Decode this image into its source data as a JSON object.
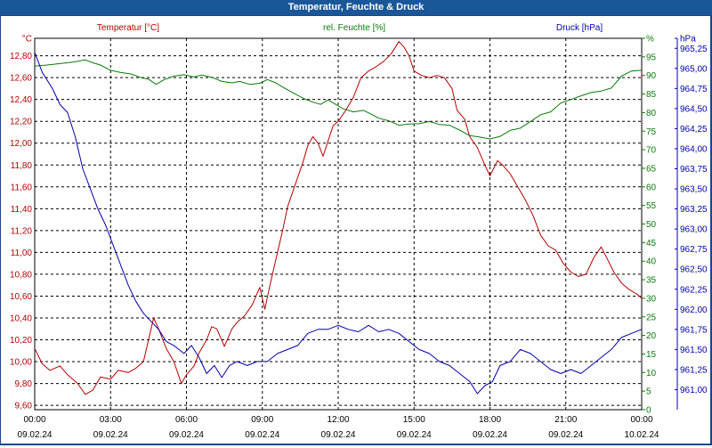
{
  "window": {
    "title": "Temperatur, Feuchte & Druck"
  },
  "colors": {
    "temperature": "#b40000",
    "humidity": "#0a7a0a",
    "pressure": "#0000aa",
    "frame": "#19478a",
    "grid": "#000000"
  },
  "chart_data": {
    "type": "line",
    "title": "Temperatur, Feuchte & Druck",
    "x_ticks": [
      {
        "time": "00:00",
        "date": "09.02.24"
      },
      {
        "time": "03:00",
        "date": "09.02.24"
      },
      {
        "time": "06:00",
        "date": "09.02.24"
      },
      {
        "time": "09:00",
        "date": "09.02.24"
      },
      {
        "time": "12:00",
        "date": "09.02.24"
      },
      {
        "time": "15:00",
        "date": "09.02.24"
      },
      {
        "time": "18:00",
        "date": "09.02.24"
      },
      {
        "time": "21:00",
        "date": "09.02.24"
      },
      {
        "time": "00:00",
        "date": "10.02.24"
      }
    ],
    "x_range_hours": [
      0,
      24
    ],
    "axes": {
      "temperature": {
        "unit": "°C",
        "range": [
          9.56,
          12.96
        ],
        "ticks": [
          "9,60",
          "9,80",
          "10,00",
          "10,20",
          "10,40",
          "10,60",
          "10,80",
          "11,00",
          "11,20",
          "11,40",
          "11,60",
          "11,80",
          "12,00",
          "12,20",
          "12,40",
          "12,60",
          "12,80"
        ],
        "tick_values": [
          9.6,
          9.8,
          10.0,
          10.2,
          10.4,
          10.6,
          10.8,
          11.0,
          11.2,
          11.4,
          11.6,
          11.8,
          12.0,
          12.2,
          12.4,
          12.6,
          12.8
        ]
      },
      "humidity": {
        "unit": "%",
        "range": [
          0,
          100
        ],
        "ticks": [
          "0",
          "5",
          "10",
          "15",
          "20",
          "25",
          "30",
          "35",
          "40",
          "45",
          "50",
          "55",
          "60",
          "65",
          "70",
          "75",
          "80",
          "85",
          "90",
          "95",
          "%"
        ],
        "tick_values": [
          0,
          5,
          10,
          15,
          20,
          25,
          30,
          35,
          40,
          45,
          50,
          55,
          60,
          65,
          70,
          75,
          80,
          85,
          90,
          95,
          100
        ]
      },
      "pressure": {
        "unit": "hPa",
        "range": [
          960.75,
          965.375
        ],
        "ticks": [
          "961,00",
          "961,25",
          "961,50",
          "961,75",
          "962,00",
          "962,25",
          "962,50",
          "962,75",
          "963,00",
          "963,25",
          "963,50",
          "963,75",
          "964,00",
          "964,25",
          "964,50",
          "964,75",
          "965,00",
          "965,25",
          "hPa"
        ],
        "tick_values": [
          961.0,
          961.25,
          961.5,
          961.75,
          962.0,
          962.25,
          962.5,
          962.75,
          963.0,
          963.25,
          963.5,
          963.75,
          964.0,
          964.25,
          964.5,
          964.75,
          965.0,
          965.25,
          965.375
        ]
      }
    },
    "series": [
      {
        "name": "Temperatur [°C]",
        "axis": "temperature",
        "color": "#b40000",
        "points": [
          [
            0,
            10.12
          ],
          [
            0.3,
            9.98
          ],
          [
            0.6,
            9.92
          ],
          [
            1.0,
            9.96
          ],
          [
            1.3,
            9.88
          ],
          [
            1.7,
            9.8
          ],
          [
            2.0,
            9.7
          ],
          [
            2.3,
            9.74
          ],
          [
            2.6,
            9.86
          ],
          [
            3.0,
            9.84
          ],
          [
            3.3,
            9.92
          ],
          [
            3.7,
            9.9
          ],
          [
            4.0,
            9.94
          ],
          [
            4.3,
            10.0
          ],
          [
            4.5,
            10.2
          ],
          [
            4.7,
            10.4
          ],
          [
            4.9,
            10.3
          ],
          [
            5.2,
            10.12
          ],
          [
            5.5,
            10.0
          ],
          [
            5.8,
            9.8
          ],
          [
            6.0,
            9.88
          ],
          [
            6.3,
            9.96
          ],
          [
            6.5,
            10.08
          ],
          [
            6.8,
            10.2
          ],
          [
            7.0,
            10.32
          ],
          [
            7.2,
            10.3
          ],
          [
            7.5,
            10.14
          ],
          [
            7.8,
            10.3
          ],
          [
            8.0,
            10.36
          ],
          [
            8.3,
            10.42
          ],
          [
            8.6,
            10.52
          ],
          [
            8.9,
            10.68
          ],
          [
            9.1,
            10.48
          ],
          [
            9.3,
            10.7
          ],
          [
            9.6,
            11.0
          ],
          [
            9.8,
            11.2
          ],
          [
            10.0,
            11.42
          ],
          [
            10.3,
            11.62
          ],
          [
            10.6,
            11.82
          ],
          [
            10.8,
            11.98
          ],
          [
            11.0,
            12.06
          ],
          [
            11.2,
            12.0
          ],
          [
            11.4,
            11.88
          ],
          [
            11.6,
            12.02
          ],
          [
            11.8,
            12.16
          ],
          [
            12.0,
            12.2
          ],
          [
            12.3,
            12.3
          ],
          [
            12.6,
            12.42
          ],
          [
            12.9,
            12.6
          ],
          [
            13.2,
            12.66
          ],
          [
            13.5,
            12.7
          ],
          [
            13.8,
            12.75
          ],
          [
            14.1,
            12.82
          ],
          [
            14.4,
            12.93
          ],
          [
            14.6,
            12.88
          ],
          [
            14.8,
            12.8
          ],
          [
            15.0,
            12.66
          ],
          [
            15.3,
            12.62
          ],
          [
            15.6,
            12.6
          ],
          [
            15.9,
            12.62
          ],
          [
            16.2,
            12.6
          ],
          [
            16.5,
            12.5
          ],
          [
            16.7,
            12.3
          ],
          [
            17.0,
            12.22
          ],
          [
            17.2,
            12.06
          ],
          [
            17.5,
            11.96
          ],
          [
            17.8,
            11.8
          ],
          [
            18.0,
            11.7
          ],
          [
            18.3,
            11.84
          ],
          [
            18.5,
            11.8
          ],
          [
            18.8,
            11.72
          ],
          [
            19.1,
            11.6
          ],
          [
            19.4,
            11.48
          ],
          [
            19.7,
            11.34
          ],
          [
            20.0,
            11.16
          ],
          [
            20.3,
            11.06
          ],
          [
            20.6,
            11.02
          ],
          [
            20.9,
            10.9
          ],
          [
            21.2,
            10.82
          ],
          [
            21.5,
            10.78
          ],
          [
            21.8,
            10.8
          ],
          [
            22.1,
            10.95
          ],
          [
            22.4,
            11.05
          ],
          [
            22.6,
            10.96
          ],
          [
            22.9,
            10.82
          ],
          [
            23.2,
            10.72
          ],
          [
            23.5,
            10.66
          ],
          [
            23.8,
            10.62
          ],
          [
            24.0,
            10.58
          ]
        ]
      },
      {
        "name": "rel. Feuchte [%]",
        "axis": "humidity",
        "color": "#0a7a0a",
        "points": [
          [
            0,
            92.5
          ],
          [
            0.5,
            92.8
          ],
          [
            1.0,
            93.2
          ],
          [
            1.5,
            93.6
          ],
          [
            2.0,
            94.2
          ],
          [
            2.3,
            93.4
          ],
          [
            2.6,
            92.8
          ],
          [
            3.0,
            91.4
          ],
          [
            3.4,
            90.8
          ],
          [
            3.8,
            90.4
          ],
          [
            4.2,
            89.4
          ],
          [
            4.5,
            89.0
          ],
          [
            4.8,
            87.6
          ],
          [
            5.1,
            88.8
          ],
          [
            5.5,
            89.8
          ],
          [
            5.9,
            90.2
          ],
          [
            6.3,
            89.6
          ],
          [
            6.6,
            90.1
          ],
          [
            7.0,
            89.5
          ],
          [
            7.4,
            88.4
          ],
          [
            7.8,
            88.0
          ],
          [
            8.1,
            88.4
          ],
          [
            8.5,
            87.6
          ],
          [
            8.9,
            87.9
          ],
          [
            9.2,
            88.9
          ],
          [
            9.5,
            88.1
          ],
          [
            9.9,
            86.5
          ],
          [
            10.3,
            85.0
          ],
          [
            10.7,
            83.6
          ],
          [
            11.0,
            82.8
          ],
          [
            11.3,
            82.2
          ],
          [
            11.6,
            83.4
          ],
          [
            11.9,
            82.2
          ],
          [
            12.2,
            81.0
          ],
          [
            12.6,
            80.2
          ],
          [
            13.0,
            80.6
          ],
          [
            13.3,
            79.6
          ],
          [
            13.6,
            78.5
          ],
          [
            14.0,
            77.8
          ],
          [
            14.4,
            76.6
          ],
          [
            14.8,
            76.9
          ],
          [
            15.2,
            77.0
          ],
          [
            15.6,
            77.6
          ],
          [
            16.0,
            76.8
          ],
          [
            16.4,
            76.6
          ],
          [
            16.8,
            75.3
          ],
          [
            17.2,
            73.8
          ],
          [
            17.6,
            73.4
          ],
          [
            18.0,
            72.9
          ],
          [
            18.4,
            73.6
          ],
          [
            18.8,
            75.2
          ],
          [
            19.2,
            75.8
          ],
          [
            19.6,
            77.6
          ],
          [
            20.0,
            79.4
          ],
          [
            20.4,
            80.2
          ],
          [
            20.8,
            82.6
          ],
          [
            21.2,
            83.5
          ],
          [
            21.6,
            84.5
          ],
          [
            22.0,
            85.4
          ],
          [
            22.4,
            85.8
          ],
          [
            22.8,
            86.6
          ],
          [
            23.2,
            89.8
          ],
          [
            23.6,
            91.2
          ],
          [
            24.0,
            91.4
          ]
        ]
      },
      {
        "name": "Druck [hPa]",
        "axis": "pressure",
        "color": "#0000aa",
        "points": [
          [
            0,
            965.2
          ],
          [
            0.3,
            964.95
          ],
          [
            0.7,
            964.75
          ],
          [
            1.0,
            964.55
          ],
          [
            1.3,
            964.45
          ],
          [
            1.6,
            964.15
          ],
          [
            1.9,
            963.75
          ],
          [
            2.2,
            963.5
          ],
          [
            2.5,
            963.25
          ],
          [
            2.8,
            963.05
          ],
          [
            3.1,
            962.8
          ],
          [
            3.4,
            962.55
          ],
          [
            3.7,
            962.3
          ],
          [
            4.0,
            962.1
          ],
          [
            4.3,
            961.95
          ],
          [
            4.6,
            961.85
          ],
          [
            4.9,
            961.75
          ],
          [
            5.2,
            961.6
          ],
          [
            5.5,
            961.55
          ],
          [
            5.9,
            961.45
          ],
          [
            6.2,
            961.55
          ],
          [
            6.5,
            961.4
          ],
          [
            6.8,
            961.2
          ],
          [
            7.1,
            961.3
          ],
          [
            7.4,
            961.15
          ],
          [
            7.7,
            961.3
          ],
          [
            8.0,
            961.35
          ],
          [
            8.4,
            961.3
          ],
          [
            8.8,
            961.35
          ],
          [
            9.2,
            961.35
          ],
          [
            9.6,
            961.45
          ],
          [
            10.0,
            961.5
          ],
          [
            10.4,
            961.55
          ],
          [
            10.8,
            961.7
          ],
          [
            11.2,
            961.75
          ],
          [
            11.6,
            961.75
          ],
          [
            12.0,
            961.8
          ],
          [
            12.4,
            961.75
          ],
          [
            12.8,
            961.72
          ],
          [
            13.2,
            961.8
          ],
          [
            13.6,
            961.72
          ],
          [
            14.0,
            961.75
          ],
          [
            14.4,
            961.7
          ],
          [
            14.8,
            961.6
          ],
          [
            15.2,
            961.5
          ],
          [
            15.6,
            961.45
          ],
          [
            16.0,
            961.35
          ],
          [
            16.4,
            961.3
          ],
          [
            16.8,
            961.2
          ],
          [
            17.2,
            961.1
          ],
          [
            17.5,
            960.95
          ],
          [
            17.8,
            961.05
          ],
          [
            18.1,
            961.1
          ],
          [
            18.4,
            961.3
          ],
          [
            18.8,
            961.35
          ],
          [
            19.2,
            961.5
          ],
          [
            19.6,
            961.45
          ],
          [
            20.0,
            961.35
          ],
          [
            20.4,
            961.25
          ],
          [
            20.8,
            961.2
          ],
          [
            21.2,
            961.25
          ],
          [
            21.6,
            961.2
          ],
          [
            22.0,
            961.3
          ],
          [
            22.4,
            961.4
          ],
          [
            22.8,
            961.5
          ],
          [
            23.2,
            961.65
          ],
          [
            23.6,
            961.7
          ],
          [
            24.0,
            961.75
          ]
        ]
      }
    ],
    "legend_position": "top",
    "grid": true
  }
}
